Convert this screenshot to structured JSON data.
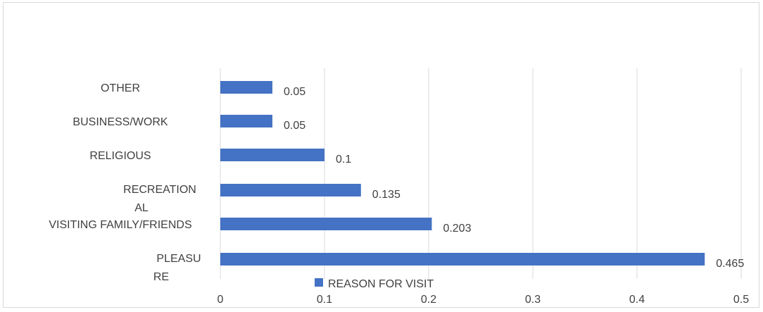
{
  "colors": {
    "bar": "#4472c4",
    "grid": "#d9d9d9",
    "text": "#404040"
  },
  "chart_data": {
    "type": "bar",
    "orientation": "horizontal",
    "title": "",
    "xlabel": "",
    "ylabel": "",
    "categories": [
      "PLEASURE",
      "VISITING FAMILY/FRIENDS",
      "RECREATIONAL",
      "RELIGIOUS",
      "BUSINESS/WORK",
      "OTHER"
    ],
    "category_display_lines": [
      [
        "PLEASU",
        "RE"
      ],
      [
        "VISITING FAMILY/FRIENDS"
      ],
      [
        "RECREATION",
        "AL"
      ],
      [
        "RELIGIOUS"
      ],
      [
        "BUSINESS/WORK"
      ],
      [
        "OTHER"
      ]
    ],
    "series": [
      {
        "name": "REASON FOR VISIT",
        "values": [
          0.465,
          0.203,
          0.135,
          0.1,
          0.05,
          0.05
        ],
        "data_labels": [
          "0.465",
          "0.203",
          "0.135",
          "0.1",
          "0.05",
          "0.05"
        ]
      }
    ],
    "xlim": [
      0,
      0.5
    ],
    "x_ticks": [
      0,
      0.1,
      0.2,
      0.3,
      0.4,
      0.5
    ],
    "x_tick_labels": [
      "0",
      "0.1",
      "0.2",
      "0.3",
      "0.4",
      "0.5"
    ],
    "grid": true,
    "legend": "bottom"
  }
}
